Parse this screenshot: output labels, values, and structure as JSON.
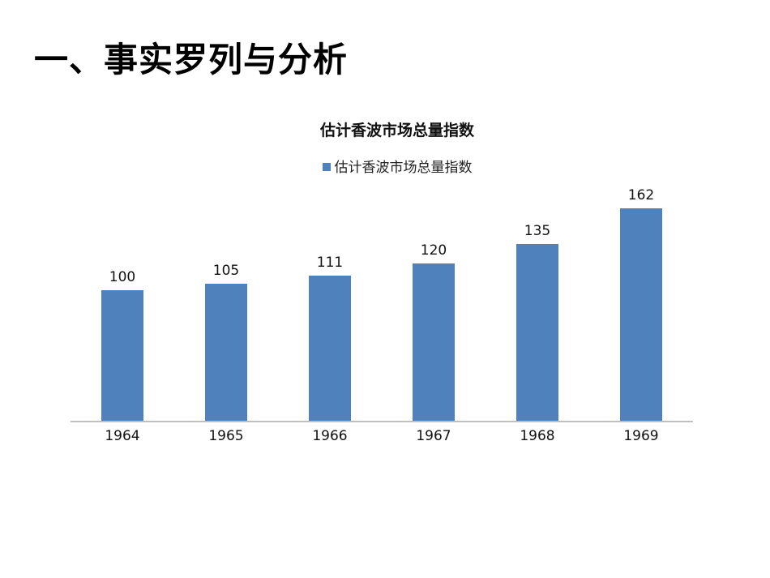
{
  "page": {
    "title": "一、事实罗列与分析"
  },
  "chart_data": {
    "type": "bar",
    "title": "估计香波市场总量指数",
    "legend": [
      "估计香波市场总量指数"
    ],
    "legend_position": "top",
    "categories": [
      "1964",
      "1965",
      "1966",
      "1967",
      "1968",
      "1969"
    ],
    "series": [
      {
        "name": "估计香波市场总量指数",
        "color": "#4f81bd",
        "values": [
          100,
          105,
          111,
          120,
          135,
          162
        ]
      }
    ],
    "xlabel": "",
    "ylabel": "",
    "ylim": [
      0,
      185
    ],
    "grid": false,
    "data_labels": true
  }
}
